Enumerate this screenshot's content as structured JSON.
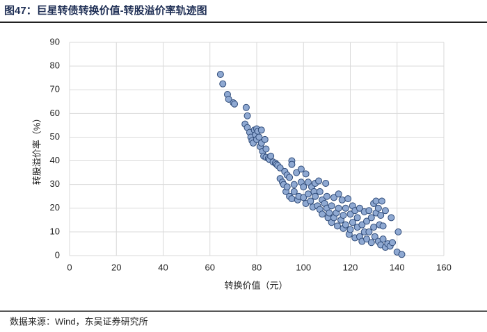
{
  "chart_data": {
    "type": "scatter",
    "title": "图47：巨星转债转换价值-转股溢价率轨迹图",
    "x_label": "转换价值（元）",
    "y_label": "转股溢价率（%）",
    "source": "数据来源：Wind，东吴证券研究所",
    "xlim": [
      0,
      160
    ],
    "xticks": [
      0,
      20,
      40,
      60,
      80,
      100,
      120,
      140,
      160
    ],
    "ylim": [
      0,
      90
    ],
    "yticks": [
      0,
      10,
      20,
      30,
      40,
      50,
      60,
      70,
      80,
      90
    ],
    "grid": true,
    "color": "#8fa9d2",
    "x": [
      64.5,
      65.5,
      67.5,
      68,
      70,
      70.5,
      75,
      75.5,
      76,
      76,
      77,
      77.5,
      78,
      78.5,
      79,
      79.5,
      80,
      80.5,
      80,
      81,
      81.5,
      82,
      82,
      82.5,
      83,
      83.5,
      84,
      84,
      85,
      85.5,
      86,
      87,
      88,
      88.5,
      89,
      90,
      90,
      91,
      91.5,
      92,
      92.5,
      93,
      93,
      94,
      94,
      95,
      95,
      95,
      96,
      96,
      97,
      97.5,
      98,
      99,
      99,
      100,
      100,
      101,
      101,
      102,
      102,
      103,
      103.5,
      104,
      104.5,
      105,
      105,
      106,
      106.5,
      107,
      107,
      108,
      108,
      109,
      109.5,
      110,
      110,
      110.5,
      111,
      112,
      112,
      113,
      113,
      114,
      114.5,
      115,
      115,
      116,
      116.5,
      117,
      117,
      118,
      118,
      119,
      119.5,
      120,
      120,
      121,
      121,
      122,
      122,
      123,
      123,
      124,
      124,
      125,
      125,
      126,
      126,
      127,
      127,
      128,
      128,
      129,
      129,
      130,
      130,
      130.5,
      131,
      131,
      132,
      132,
      132.5,
      133,
      133,
      133.5,
      134,
      134,
      135,
      135,
      136,
      137,
      137.5,
      138,
      140,
      140.5,
      142
    ],
    "values": [
      76.5,
      72.5,
      68,
      66,
      64.5,
      64,
      55.5,
      62.5,
      59,
      54,
      52,
      50,
      48.5,
      47.5,
      53,
      51,
      53.5,
      52.5,
      49,
      50,
      46,
      53,
      47.5,
      44,
      42,
      49,
      45,
      41.5,
      41,
      40.5,
      42,
      39.5,
      39,
      38.5,
      38,
      37,
      32.5,
      31,
      30,
      35.5,
      27,
      34,
      29,
      33,
      25,
      40,
      38.5,
      24,
      30,
      27,
      35,
      23.5,
      25,
      36.5,
      31,
      29,
      24.5,
      34.5,
      22,
      31,
      26,
      23,
      29,
      20.5,
      27,
      30.5,
      25,
      21,
      31.5,
      19.5,
      27,
      23.5,
      17.5,
      22,
      30.5,
      25,
      20,
      16,
      18,
      21,
      14,
      16,
      24.5,
      18,
      12.5,
      26,
      20,
      15,
      23.5,
      17,
      11.5,
      20,
      13,
      24,
      9,
      17.5,
      11,
      21,
      14,
      7.5,
      19,
      12,
      16,
      8,
      20,
      13,
      6,
      18.5,
      10,
      14.5,
      7,
      19,
      10,
      5.5,
      16,
      22,
      12,
      8,
      18,
      23,
      20,
      6,
      13,
      17,
      4.5,
      23,
      12.5,
      7,
      19,
      3.5,
      5,
      4,
      16,
      5.5,
      1.5,
      10,
      0.5
    ]
  }
}
